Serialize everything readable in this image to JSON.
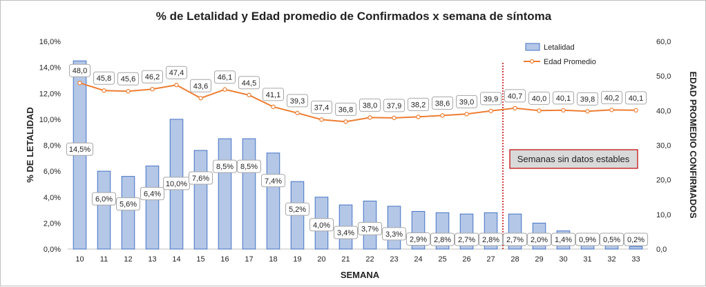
{
  "chart_data": {
    "type": "bar+line",
    "title": "% de Letalidad y Edad promedio de Confirmados x semana de síntoma",
    "xlabel": "SEMANA",
    "ylabel_left": "% DE LETALIDAD",
    "ylabel_right": "EDAD PROMEDIO CONFIRMADOS",
    "categories": [
      "10",
      "11",
      "12",
      "13",
      "14",
      "15",
      "16",
      "17",
      "18",
      "19",
      "20",
      "21",
      "22",
      "23",
      "24",
      "25",
      "26",
      "27",
      "28",
      "29",
      "30",
      "31",
      "32",
      "33"
    ],
    "y_left_ticks": [
      "0,0%",
      "2,0%",
      "4,0%",
      "6,0%",
      "8,0%",
      "10,0%",
      "12,0%",
      "14,0%",
      "16,0%"
    ],
    "y_right_ticks": [
      "0,0",
      "10,0",
      "20,0",
      "30,0",
      "40,0",
      "50,0",
      "60,0"
    ],
    "ylim_left": [
      0,
      16
    ],
    "ylim_right": [
      0,
      60
    ],
    "series": [
      {
        "name": "Letalidad",
        "kind": "bar",
        "axis": "left",
        "color": "#b4c7e7",
        "border": "#4472c4",
        "values": [
          14.5,
          6.0,
          5.6,
          6.4,
          10.0,
          7.6,
          8.5,
          8.5,
          7.4,
          5.2,
          4.0,
          3.4,
          3.7,
          3.3,
          2.9,
          2.8,
          2.7,
          2.8,
          2.7,
          2.0,
          1.4,
          0.9,
          0.5,
          0.2
        ],
        "labels": [
          "14,5%",
          "6,0%",
          "5,6%",
          "6,4%",
          "10,0%",
          "7,6%",
          "8,5%",
          "8,5%",
          "7,4%",
          "5,2%",
          "4,0%",
          "3,4%",
          "3,7%",
          "3,3%",
          "2,9%",
          "2,8%",
          "2,7%",
          "2,8%",
          "2,7%",
          "2,0%",
          "1,4%",
          "0,9%",
          "0,5%",
          "0,2%"
        ]
      },
      {
        "name": "Edad Promedio",
        "kind": "line",
        "axis": "right",
        "color": "#ed7d31",
        "values": [
          48.0,
          45.8,
          45.6,
          46.2,
          47.4,
          43.6,
          46.1,
          44.5,
          41.1,
          39.3,
          37.4,
          36.8,
          38.0,
          37.9,
          38.2,
          38.6,
          39.0,
          39.9,
          40.7,
          40.0,
          40.1,
          39.8,
          40.2,
          40.1
        ],
        "labels": [
          "48,0",
          "45,8",
          "45,6",
          "46,2",
          "47,4",
          "43,6",
          "46,1",
          "44,5",
          "41,1",
          "39,3",
          "37,4",
          "36,8",
          "38,0",
          "37,9",
          "38,2",
          "38,6",
          "39,0",
          "39,9",
          "40,7",
          "40,0",
          "40,1",
          "39,8",
          "40,2",
          "40,1"
        ]
      }
    ],
    "legend_position": "top-right",
    "grid": false,
    "annotation": {
      "text": "Semanas sin datos estables",
      "divider_after_category": "27",
      "divider_color": "#c00000"
    }
  }
}
